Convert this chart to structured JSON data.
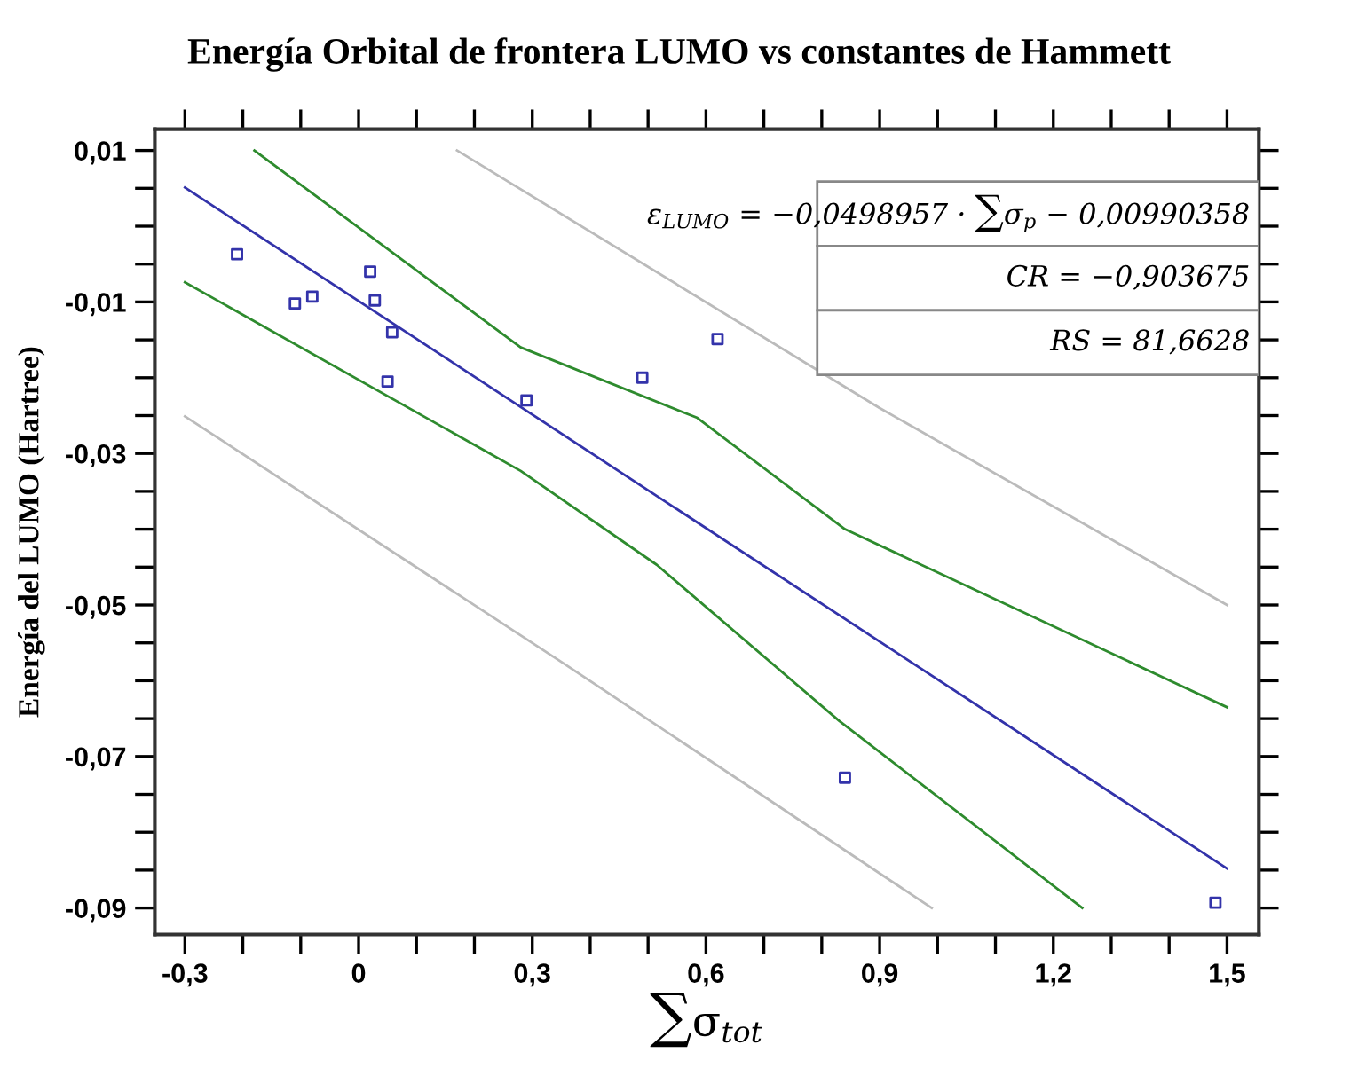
{
  "chart_data": {
    "type": "scatter",
    "title": "Energía Orbital de frontera LUMO vs constantes de Hammett",
    "xlabel": "∑σ$_{tot}$",
    "ylabel": "Energía del LUMO (Hartree)",
    "annotations": [
      "ε$_{LUMO}$ = −0,0498957 · ∑σ$_{p}$ − 0,00990358",
      "CR = −0,903675",
      "RS = 81,6628"
    ],
    "grid": false,
    "legend": false,
    "xlim": [
      -0.352,
      1.555
    ],
    "ylim": [
      -0.0935,
      0.0128
    ],
    "xticks": [
      {
        "value": -0.3,
        "label": "-0,3"
      },
      {
        "value": -0.2,
        "label": null
      },
      {
        "value": -0.1,
        "label": null
      },
      {
        "value": 0,
        "label": "0"
      },
      {
        "value": 0.1,
        "label": null
      },
      {
        "value": 0.2,
        "label": null
      },
      {
        "value": 0.3,
        "label": "0,3"
      },
      {
        "value": 0.4,
        "label": null
      },
      {
        "value": 0.5,
        "label": null
      },
      {
        "value": 0.6,
        "label": "0,6"
      },
      {
        "value": 0.7,
        "label": null
      },
      {
        "value": 0.8,
        "label": null
      },
      {
        "value": 0.9,
        "label": "0,9"
      },
      {
        "value": 1.0,
        "label": null
      },
      {
        "value": 1.1,
        "label": null
      },
      {
        "value": 1.2,
        "label": "1,2"
      },
      {
        "value": 1.3,
        "label": null
      },
      {
        "value": 1.4,
        "label": null
      },
      {
        "value": 1.5,
        "label": "1,5"
      }
    ],
    "yticks": [
      {
        "value": 0.01,
        "label": "0,01"
      },
      {
        "value": 0.005,
        "label": null
      },
      {
        "value": 0.0,
        "label": null
      },
      {
        "value": -0.005,
        "label": null
      },
      {
        "value": -0.01,
        "label": "-0,01"
      },
      {
        "value": -0.015,
        "label": null
      },
      {
        "value": -0.02,
        "label": null
      },
      {
        "value": -0.025,
        "label": null
      },
      {
        "value": -0.03,
        "label": "-0,03"
      },
      {
        "value": -0.035,
        "label": null
      },
      {
        "value": -0.04,
        "label": null
      },
      {
        "value": -0.045,
        "label": null
      },
      {
        "value": -0.05,
        "label": "-0,05"
      },
      {
        "value": -0.055,
        "label": null
      },
      {
        "value": -0.06,
        "label": null
      },
      {
        "value": -0.065,
        "label": null
      },
      {
        "value": -0.07,
        "label": "-0,07"
      },
      {
        "value": -0.075,
        "label": null
      },
      {
        "value": -0.08,
        "label": null
      },
      {
        "value": -0.085,
        "label": null
      },
      {
        "value": -0.09,
        "label": "-0,09"
      }
    ],
    "series": [
      {
        "marker": "square",
        "color": "#3333aa",
        "x": [
          -0.21,
          -0.11,
          -0.08,
          0.02,
          0.028,
          0.058,
          0.05,
          0.29,
          0.49,
          0.62,
          0.84,
          1.48
        ],
        "values": [
          -0.0037,
          -0.0102,
          -0.0093,
          -0.006,
          -0.0098,
          -0.014,
          -0.0205,
          -0.023,
          -0.02,
          -0.0149,
          -0.0728,
          -0.0893
        ]
      },
      {
        "type": "line",
        "color": "#3333aa",
        "x": [
          -0.3,
          1.5
        ],
        "values": [
          0.0051,
          -0.0848
        ]
      },
      {
        "type": "line",
        "color": "#2e8b2e",
        "x": [
          -0.18,
          0.28,
          0.585,
          0.84,
          1.5
        ],
        "values": [
          0.01,
          -0.016,
          -0.0253,
          -0.04,
          -0.0635
        ]
      },
      {
        "type": "line",
        "color": "#2e8b2e",
        "x": [
          -0.3,
          0.28,
          0.515,
          0.83,
          1.25
        ],
        "values": [
          -0.0074,
          -0.0323,
          -0.0447,
          -0.0653,
          -0.09
        ]
      },
      {
        "type": "line",
        "color": "#bbbbbb",
        "x": [
          0.17,
          0.9,
          1.5
        ],
        "values": [
          0.01,
          -0.024,
          -0.05
        ]
      },
      {
        "type": "line",
        "color": "#bbbbbb",
        "x": [
          -0.3,
          0.35,
          0.99
        ],
        "values": [
          -0.0251,
          -0.0575,
          -0.09
        ]
      }
    ]
  }
}
